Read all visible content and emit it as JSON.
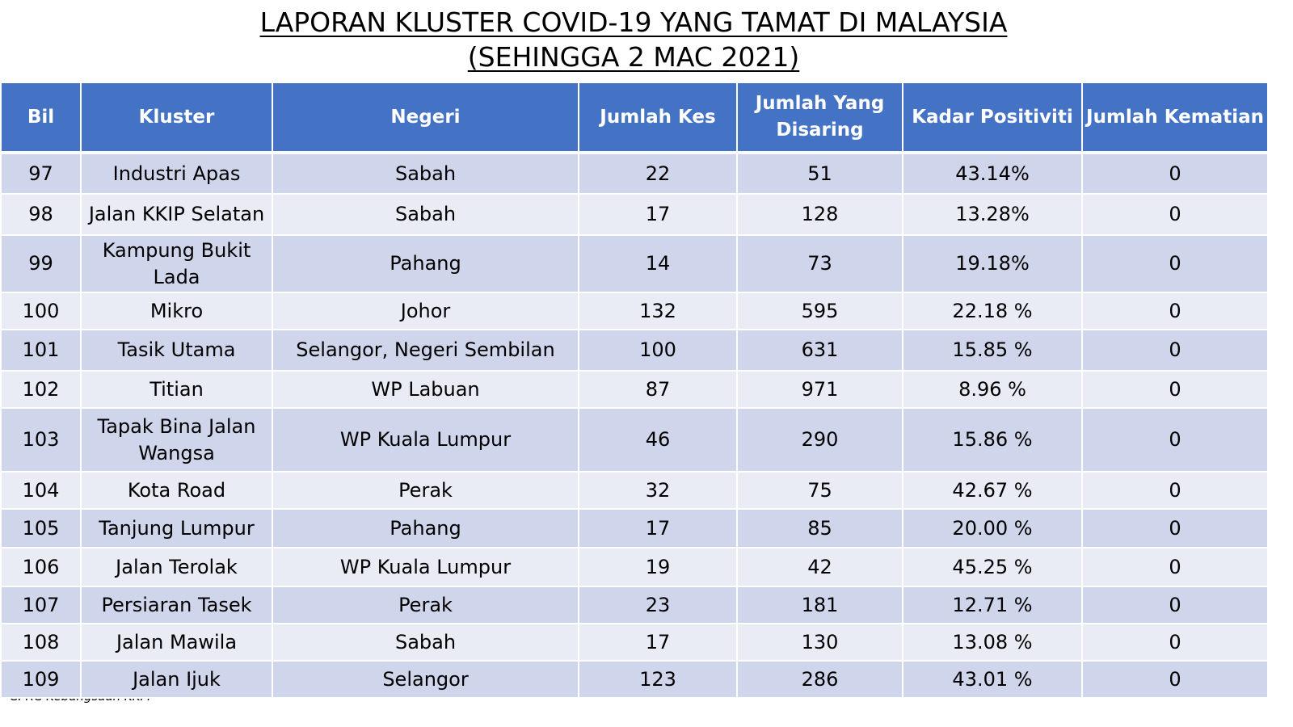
{
  "title": {
    "line1": "LAPORAN KLUSTER COVID-19 YANG TAMAT DI MALAYSIA",
    "line2": "(SEHINGGA  2 MAC 2021)"
  },
  "table": {
    "headers": [
      "Bil",
      "Kluster",
      "Negeri",
      "Jumlah Kes",
      "Jumlah Yang Disaring",
      "Kadar Positiviti",
      "Jumlah Kematian"
    ],
    "rows": [
      {
        "bil": "97",
        "kluster": "Industri Apas",
        "negeri": "Sabah",
        "kes": "22",
        "disaring": "51",
        "positiviti": "43.14%",
        "kematian": "0"
      },
      {
        "bil": "98",
        "kluster": "Jalan KKIP Selatan",
        "negeri": "Sabah",
        "kes": "17",
        "disaring": "128",
        "positiviti": "13.28%",
        "kematian": "0"
      },
      {
        "bil": "99",
        "kluster": "Kampung Bukit Lada",
        "negeri": "Pahang",
        "kes": "14",
        "disaring": "73",
        "positiviti": "19.18%",
        "kematian": "0"
      },
      {
        "bil": "100",
        "kluster": "Mikro",
        "negeri": "Johor",
        "kes": "132",
        "disaring": "595",
        "positiviti": "22.18 %",
        "kematian": "0"
      },
      {
        "bil": "101",
        "kluster": "Tasik Utama",
        "negeri": "Selangor, Negeri Sembilan",
        "kes": "100",
        "disaring": "631",
        "positiviti": "15.85 %",
        "kematian": "0"
      },
      {
        "bil": "102",
        "kluster": "Titian",
        "negeri": "WP Labuan",
        "kes": "87",
        "disaring": "971",
        "positiviti": "8.96 %",
        "kematian": "0"
      },
      {
        "bil": "103",
        "kluster": "Tapak Bina Jalan Wangsa",
        "negeri": "WP Kuala Lumpur",
        "kes": "46",
        "disaring": "290",
        "positiviti": "15.86 %",
        "kematian": "0"
      },
      {
        "bil": "104",
        "kluster": "Kota Road",
        "negeri": "Perak",
        "kes": "32",
        "disaring": "75",
        "positiviti": "42.67 %",
        "kematian": "0"
      },
      {
        "bil": "105",
        "kluster": "Tanjung Lumpur",
        "negeri": "Pahang",
        "kes": "17",
        "disaring": "85",
        "positiviti": "20.00 %",
        "kematian": "0"
      },
      {
        "bil": "106",
        "kluster": "Jalan Terolak",
        "negeri": "WP Kuala Lumpur",
        "kes": "19",
        "disaring": "42",
        "positiviti": "45.25 %",
        "kematian": "0"
      },
      {
        "bil": "107",
        "kluster": "Persiaran Tasek",
        "negeri": "Perak",
        "kes": "23",
        "disaring": "181",
        "positiviti": "12.71 %",
        "kematian": "0"
      },
      {
        "bil": "108",
        "kluster": "Jalan Mawila",
        "negeri": "Sabah",
        "kes": "17",
        "disaring": "130",
        "positiviti": "13.08 %",
        "kematian": "0"
      },
      {
        "bil": "109",
        "kluster": "Jalan Ijuk",
        "negeri": "Selangor",
        "kes": "123",
        "disaring": "286",
        "positiviti": "43.01 %",
        "kematian": "0"
      }
    ]
  },
  "footer": {
    "source": "CPRC Kebangsaan KKM"
  },
  "colors": {
    "header_bg": "#4472c4",
    "row_dark": "#cfd5ea",
    "row_light": "#e9ebf5"
  }
}
